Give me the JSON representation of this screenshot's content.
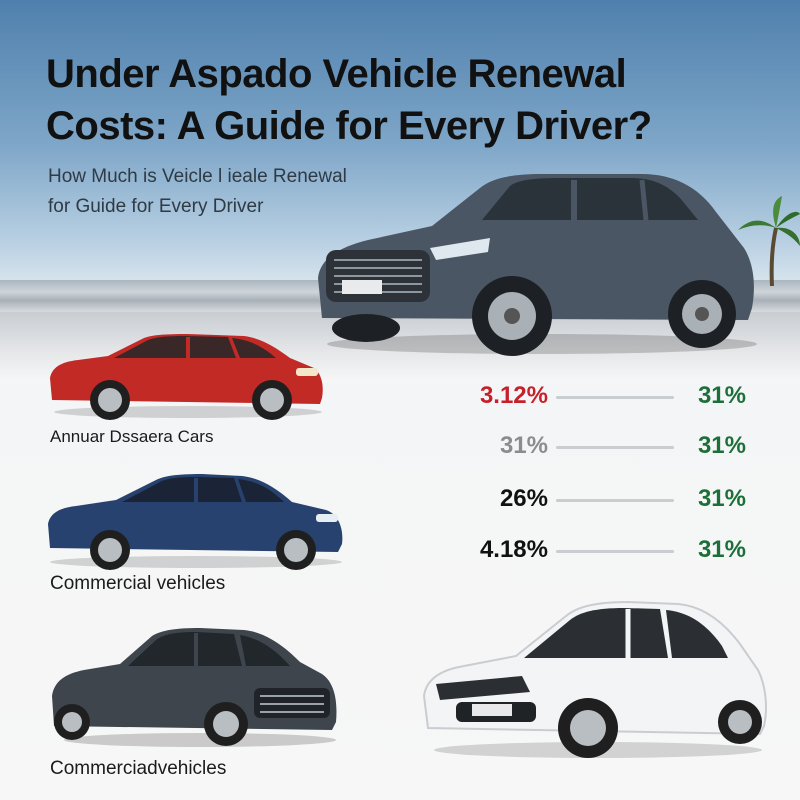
{
  "headline": {
    "line1": "Under Aspado Vehicle Renewal",
    "line2": "Costs: A Guide for Every Driver?"
  },
  "subheading": {
    "line1": "How Much is Veicle l ieale Renewal",
    "line2": "for Guide for Every Driver"
  },
  "labels": {
    "cars": "Annuar Dssaera Cars",
    "commercial_1": "Commercial vehicles",
    "commercial_2": "Commerciadvehicles"
  },
  "rates": [
    {
      "left": "3.12%",
      "right": "31%"
    },
    {
      "left": "31%",
      "right": "31%"
    },
    {
      "left": "26%",
      "right": "31%"
    },
    {
      "left": "4.18%",
      "right": "31%"
    }
  ],
  "colors": {
    "rate_left": [
      "#c6202a",
      "#8c8c8c",
      "#111111",
      "#111111"
    ],
    "rate_right": "#1d6f3a",
    "suv": "#4a5663",
    "red_car": "#c22a26",
    "blue_car": "#27426e",
    "grey_sedan": "#3e454d",
    "white_sedan": "#f3f4f5"
  },
  "icons": [
    "suv-image",
    "red-hatchback-image",
    "blue-sedan-image",
    "grey-sedan-image",
    "white-sedan-image",
    "palm-tree-icon"
  ]
}
